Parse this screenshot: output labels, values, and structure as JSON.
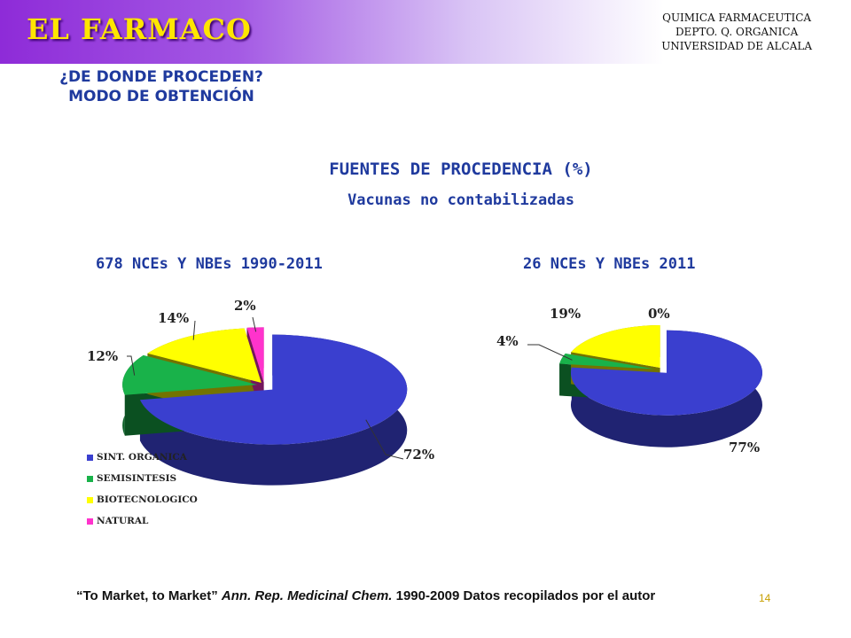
{
  "header": {
    "title": "EL FARMACO",
    "institution": [
      "QUIMICA FARMACEUTICA",
      "DEPTO. Q. ORGANICA",
      "UNIVERSIDAD DE ALCALA"
    ]
  },
  "subtitle": {
    "line1": "¿DE DONDE PROCEDEN?",
    "line2": "MODO DE OBTENCIÓN"
  },
  "colors": {
    "header_gradient": "#8e2bd8",
    "title_text": "#ffe600",
    "heading_text": "#1f3a9e",
    "sint_organica": "#3a3fcf",
    "semisintesis": "#19b24a",
    "biotecnologico": "#ffff00",
    "natural": "#ff33cc"
  },
  "chart_data": [
    {
      "type": "pie",
      "style": "3d-exploded",
      "title": "FUENTES DE PROCEDENCIA (%)",
      "subtitle": "Vacunas no contabilizadas",
      "heading": "678 NCEs Y NBEs 1990-2011",
      "series": [
        {
          "name": "SINT. ORGANICA",
          "value": 72,
          "label": "72%"
        },
        {
          "name": "SEMISINTESIS",
          "value": 12,
          "label": "12%"
        },
        {
          "name": "BIOTECNOLOGICO",
          "value": 14,
          "label": "14%"
        },
        {
          "name": "NATURAL",
          "value": 2,
          "label": "2%"
        }
      ],
      "legend": {
        "position": "bottom-left"
      }
    },
    {
      "type": "pie",
      "style": "3d-exploded",
      "heading": "26 NCEs Y NBEs 2011",
      "series": [
        {
          "name": "SINT. ORGANICA",
          "value": 77,
          "label": "77%"
        },
        {
          "name": "SEMISINTESIS",
          "value": 4,
          "label": "4%"
        },
        {
          "name": "BIOTECNOLOGICO",
          "value": 19,
          "label": "19%"
        },
        {
          "name": "NATURAL",
          "value": 0,
          "label": "0%"
        }
      ]
    }
  ],
  "footnote": {
    "part1": "“To Market, to Market” ",
    "part2": "Ann. Rep. Medicinal Chem.",
    "part3": " 1990-2009 Datos recopilados por el autor"
  },
  "slide_number": "14"
}
